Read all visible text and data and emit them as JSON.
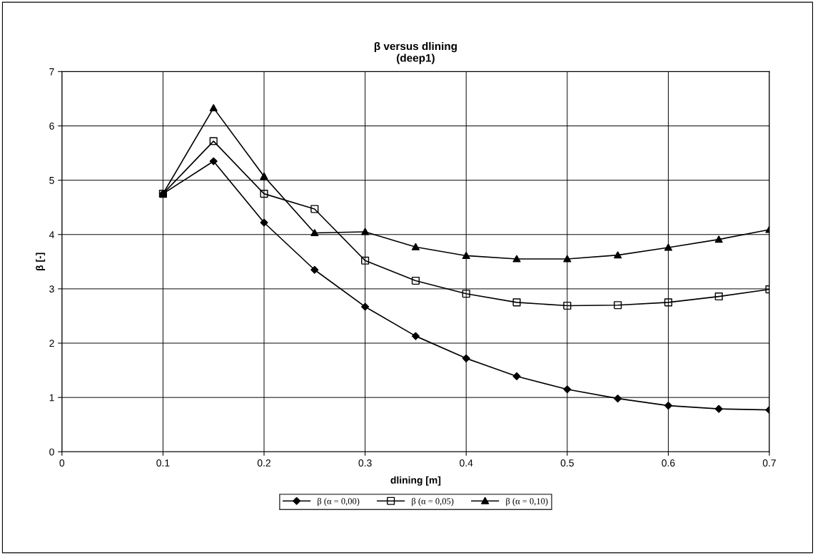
{
  "chart_data": {
    "type": "line",
    "title": "β versus dlining\n(deep1)",
    "xlabel": "dlining [m]",
    "ylabel": "β [-]",
    "x": [
      0.1,
      0.15,
      0.2,
      0.25,
      0.3,
      0.35,
      0.4,
      0.45,
      0.5,
      0.55,
      0.6,
      0.65,
      0.7
    ],
    "series": [
      {
        "name": "β (α = 0,00)",
        "color": "#000000",
        "marker": "diamond",
        "values": [
          4.75,
          5.35,
          4.22,
          3.35,
          2.67,
          2.13,
          1.72,
          1.39,
          1.15,
          0.98,
          0.85,
          0.79,
          0.77
        ]
      },
      {
        "name": "β (α = 0,05)",
        "color": "#000000",
        "marker": "square",
        "values": [
          4.75,
          5.72,
          4.75,
          4.47,
          3.52,
          3.15,
          2.91,
          2.75,
          2.69,
          2.7,
          2.75,
          2.86,
          2.99
        ]
      },
      {
        "name": "β (α = 0,10)",
        "color": "#000000",
        "marker": "triangle",
        "values": [
          4.75,
          6.33,
          5.07,
          4.03,
          4.05,
          3.77,
          3.61,
          3.55,
          3.55,
          3.62,
          3.76,
          3.91,
          4.09
        ]
      }
    ],
    "xlim": [
      0,
      0.7
    ],
    "xticks": [
      0,
      0.1,
      0.2,
      0.3,
      0.4,
      0.5,
      0.6,
      0.7
    ],
    "ylim": [
      0,
      7
    ],
    "yticks": [
      0,
      1,
      2,
      3,
      4,
      5,
      6,
      7
    ],
    "grid": true,
    "legend": "bottom",
    "line_style": "solid"
  }
}
